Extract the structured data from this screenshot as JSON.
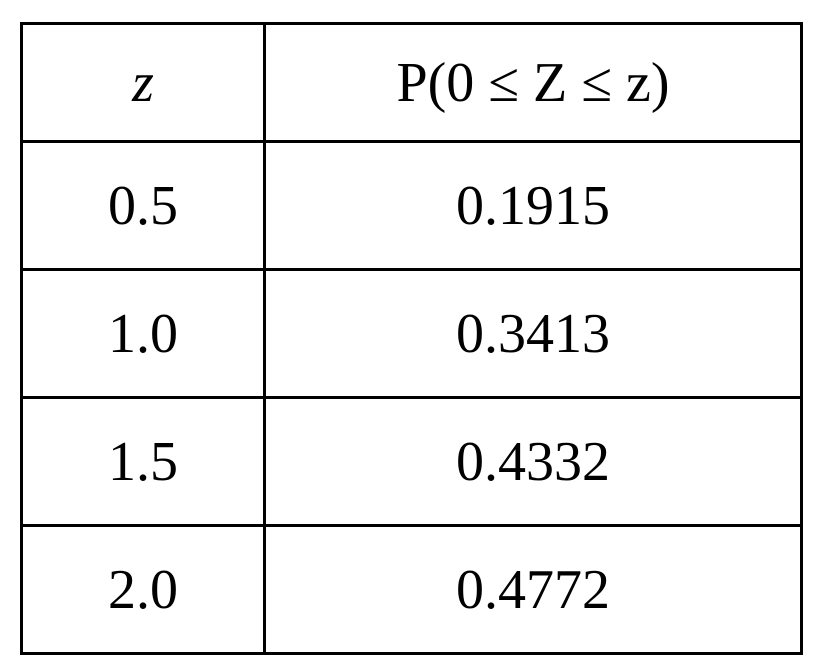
{
  "table": {
    "header": [
      "z",
      "P(0 ≤ Z ≤ z)"
    ],
    "rows": [
      [
        "0.5",
        "0.1915"
      ],
      [
        "1.0",
        "0.3413"
      ],
      [
        "1.5",
        "0.4332"
      ],
      [
        "2.0",
        "0.4772"
      ]
    ]
  }
}
